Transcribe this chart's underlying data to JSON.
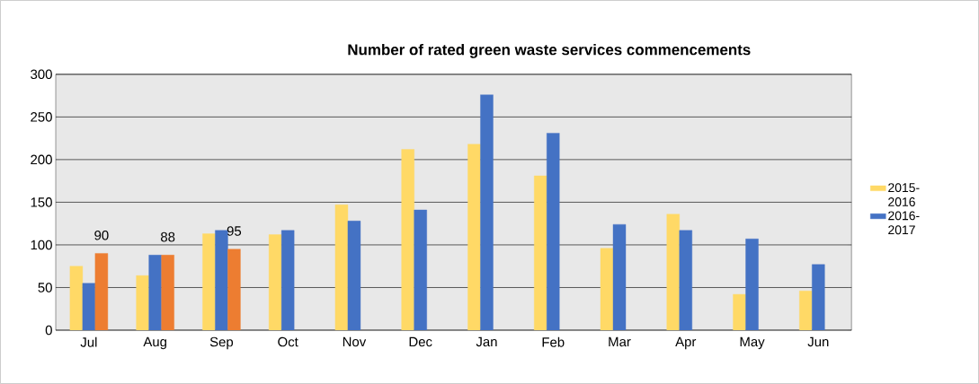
{
  "chart_data": {
    "type": "bar",
    "title": "Number of rated green waste services commencements",
    "categories": [
      "Jul",
      "Aug",
      "Sep",
      "Oct",
      "Nov",
      "Dec",
      "Jan",
      "Feb",
      "Mar",
      "Apr",
      "May",
      "Jun"
    ],
    "series": [
      {
        "name": "2015-2016",
        "color": "#ffd966",
        "values": [
          75,
          64,
          113,
          112,
          147,
          212,
          218,
          181,
          96,
          136,
          42,
          46
        ]
      },
      {
        "name": "2016-2017",
        "color": "#4472c4",
        "values": [
          55,
          88,
          117,
          117,
          128,
          141,
          276,
          231,
          124,
          117,
          107,
          77
        ]
      },
      {
        "color": "#ed7d31",
        "values": [
          90,
          88,
          95,
          null,
          null,
          null,
          null,
          null,
          null,
          null,
          null,
          null
        ],
        "value_labels": [
          "90",
          "88",
          "95",
          null,
          null,
          null,
          null,
          null,
          null,
          null,
          null,
          null
        ]
      }
    ],
    "ylim": [
      0,
      300
    ],
    "yticks": [
      0,
      50,
      100,
      150,
      200,
      250,
      300
    ],
    "grid": "y",
    "legend": "right"
  }
}
